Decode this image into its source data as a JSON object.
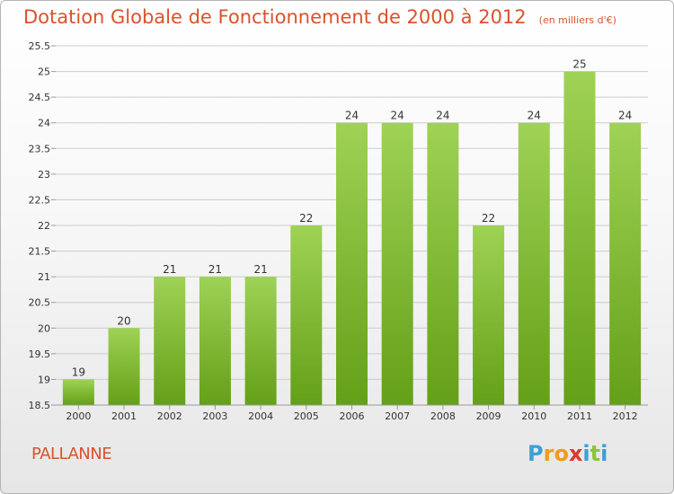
{
  "title": "Dotation Globale de Fonctionnement de 2000 à 2012",
  "unit": "(en milliers d'€)",
  "commune": "PALLANNE",
  "logo": {
    "letters": [
      "P",
      "r",
      "o",
      "x",
      "i",
      "t",
      "i"
    ],
    "colors": [
      "#3aa0d8",
      "#f29a1d",
      "#f29a1d",
      "#d93a2b",
      "#3aa0d8",
      "#8bc53f",
      "#3aa0d8"
    ]
  },
  "colors": {
    "title": "#d9532c",
    "bar_top": "#9fd255",
    "bar_bottom": "#64a017",
    "grid": "#cccccc"
  },
  "chart_data": {
    "type": "bar",
    "title": "Dotation Globale de Fonctionnement de 2000 à 2012",
    "xlabel": "",
    "ylabel": "",
    "categories": [
      "2000",
      "2001",
      "2002",
      "2003",
      "2004",
      "2005",
      "2006",
      "2007",
      "2008",
      "2009",
      "2010",
      "2011",
      "2012"
    ],
    "values": [
      19,
      20,
      21,
      21,
      21,
      22,
      24,
      24,
      24,
      22,
      24,
      25,
      24
    ],
    "data_labels": [
      "19",
      "20",
      "21",
      "21",
      "21",
      "22",
      "24",
      "24",
      "24",
      "22",
      "24",
      "25",
      "24"
    ],
    "ylim": [
      18.5,
      25.5
    ],
    "yticks": [
      "18.5",
      "19",
      "19.5",
      "20",
      "20.5",
      "21",
      "21.5",
      "22",
      "22.5",
      "23",
      "23.5",
      "24",
      "24.5",
      "25",
      "25.5"
    ],
    "grid": true,
    "legend": "none"
  }
}
